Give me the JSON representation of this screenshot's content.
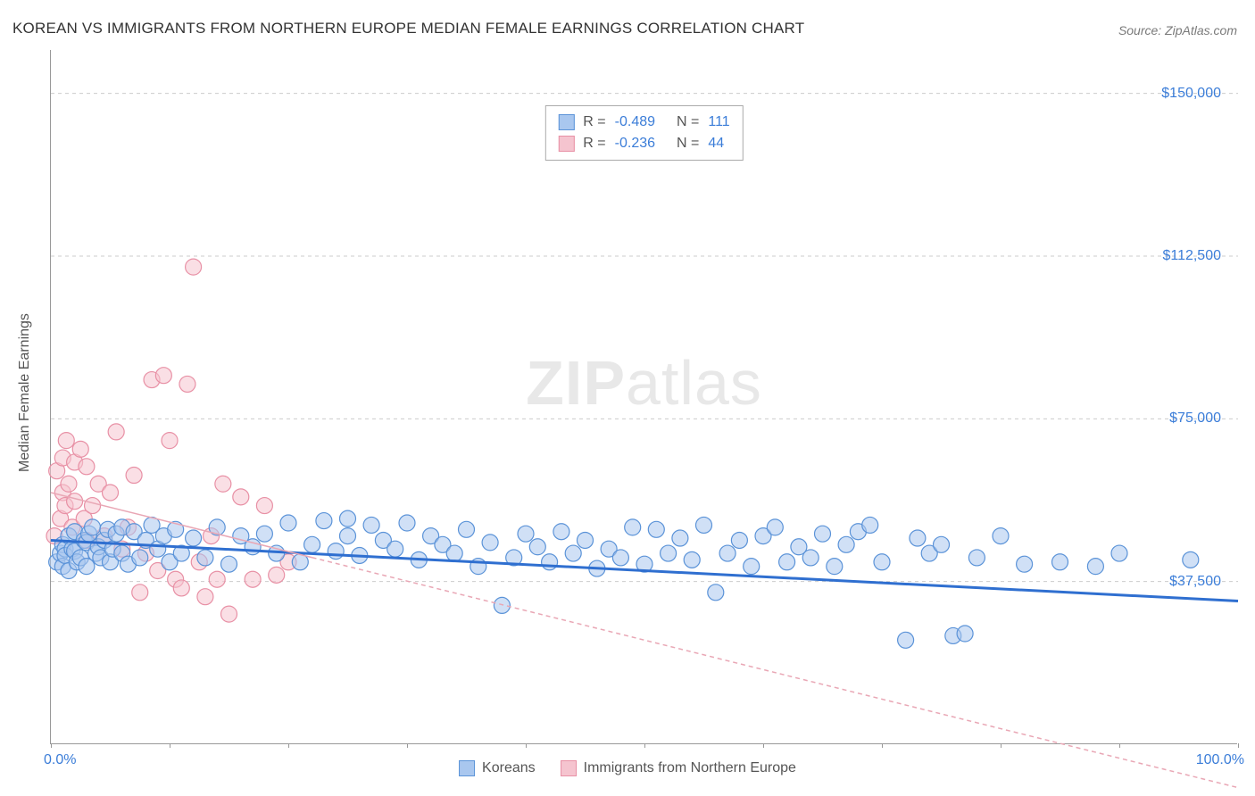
{
  "title": "KOREAN VS IMMIGRANTS FROM NORTHERN EUROPE MEDIAN FEMALE EARNINGS CORRELATION CHART",
  "source": "Source: ZipAtlas.com",
  "watermark_zip": "ZIP",
  "watermark_atlas": "atlas",
  "y_axis_title": "Median Female Earnings",
  "chart": {
    "type": "scatter-correlation",
    "background_color": "#ffffff",
    "grid_color": "#cccccc",
    "axis_color": "#999999",
    "xlim": [
      0,
      100
    ],
    "ylim": [
      0,
      160000
    ],
    "x_ticks": [
      0,
      10,
      20,
      30,
      40,
      50,
      60,
      70,
      80,
      90,
      100
    ],
    "x_tick_labels": {
      "0": "0.0%",
      "100": "100.0%"
    },
    "y_ticks": [
      37500,
      75000,
      112500,
      150000
    ],
    "y_tick_labels": [
      "$37,500",
      "$75,000",
      "$112,500",
      "$150,000"
    ],
    "label_color": "#3b7dd8",
    "title_fontsize": 17,
    "label_fontsize": 16,
    "marker_radius": 9,
    "marker_opacity": 0.55,
    "series": [
      {
        "name": "Koreans",
        "color_fill": "#a9c7ef",
        "color_stroke": "#5b93d8",
        "correlation_R": "-0.489",
        "correlation_N": "111",
        "trend": {
          "y_at_x0": 47000,
          "y_at_x100": 33000,
          "stroke": "#2f6fd0",
          "width": 3,
          "dash": "none"
        },
        "points": [
          [
            0.5,
            42000
          ],
          [
            0.8,
            44000
          ],
          [
            1,
            46000
          ],
          [
            1,
            41000
          ],
          [
            1.2,
            45000
          ],
          [
            1.2,
            43500
          ],
          [
            1.5,
            48000
          ],
          [
            1.5,
            40000
          ],
          [
            1.8,
            45000
          ],
          [
            2,
            44500
          ],
          [
            2,
            49000
          ],
          [
            2.2,
            42000
          ],
          [
            2.5,
            43000
          ],
          [
            2.8,
            47000
          ],
          [
            3,
            46500
          ],
          [
            3,
            41000
          ],
          [
            3.2,
            48500
          ],
          [
            3.5,
            50000
          ],
          [
            3.8,
            44000
          ],
          [
            4,
            45500
          ],
          [
            4.2,
            43000
          ],
          [
            4.5,
            47000
          ],
          [
            4.8,
            49500
          ],
          [
            5,
            42000
          ],
          [
            5.2,
            45000
          ],
          [
            5.5,
            48500
          ],
          [
            6,
            44000
          ],
          [
            6,
            50000
          ],
          [
            6.5,
            41500
          ],
          [
            7,
            49000
          ],
          [
            7.5,
            43000
          ],
          [
            8,
            47000
          ],
          [
            8.5,
            50500
          ],
          [
            9,
            45000
          ],
          [
            9.5,
            48000
          ],
          [
            10,
            42000
          ],
          [
            10.5,
            49500
          ],
          [
            11,
            44000
          ],
          [
            12,
            47500
          ],
          [
            13,
            43000
          ],
          [
            14,
            50000
          ],
          [
            15,
            41500
          ],
          [
            16,
            48000
          ],
          [
            17,
            45500
          ],
          [
            18,
            48500
          ],
          [
            19,
            44000
          ],
          [
            20,
            51000
          ],
          [
            21,
            42000
          ],
          [
            22,
            46000
          ],
          [
            23,
            51500
          ],
          [
            24,
            44500
          ],
          [
            25,
            48000
          ],
          [
            25,
            52000
          ],
          [
            26,
            43500
          ],
          [
            27,
            50500
          ],
          [
            28,
            47000
          ],
          [
            29,
            45000
          ],
          [
            30,
            51000
          ],
          [
            31,
            42500
          ],
          [
            32,
            48000
          ],
          [
            33,
            46000
          ],
          [
            34,
            44000
          ],
          [
            35,
            49500
          ],
          [
            36,
            41000
          ],
          [
            37,
            46500
          ],
          [
            38,
            32000
          ],
          [
            39,
            43000
          ],
          [
            40,
            48500
          ],
          [
            41,
            45500
          ],
          [
            42,
            42000
          ],
          [
            43,
            49000
          ],
          [
            44,
            44000
          ],
          [
            45,
            47000
          ],
          [
            46,
            40500
          ],
          [
            47,
            45000
          ],
          [
            48,
            43000
          ],
          [
            49,
            50000
          ],
          [
            50,
            41500
          ],
          [
            51,
            49500
          ],
          [
            52,
            44000
          ],
          [
            53,
            47500
          ],
          [
            54,
            42500
          ],
          [
            55,
            50500
          ],
          [
            56,
            35000
          ],
          [
            57,
            44000
          ],
          [
            58,
            47000
          ],
          [
            59,
            41000
          ],
          [
            60,
            48000
          ],
          [
            61,
            50000
          ],
          [
            62,
            42000
          ],
          [
            63,
            45500
          ],
          [
            64,
            43000
          ],
          [
            65,
            48500
          ],
          [
            66,
            41000
          ],
          [
            67,
            46000
          ],
          [
            68,
            49000
          ],
          [
            69,
            50500
          ],
          [
            70,
            42000
          ],
          [
            72,
            24000
          ],
          [
            73,
            47500
          ],
          [
            74,
            44000
          ],
          [
            75,
            46000
          ],
          [
            76,
            25000
          ],
          [
            77,
            25500
          ],
          [
            78,
            43000
          ],
          [
            80,
            48000
          ],
          [
            82,
            41500
          ],
          [
            85,
            42000
          ],
          [
            88,
            41000
          ],
          [
            90,
            44000
          ],
          [
            96,
            42500
          ]
        ]
      },
      {
        "name": "Immigrants from Northern Europe",
        "color_fill": "#f5c4cf",
        "color_stroke": "#e890a5",
        "correlation_R": "-0.236",
        "correlation_N": "44",
        "trend": {
          "y_at_x0": 58000,
          "y_at_x100": -10000,
          "stroke": "#e9a7b5",
          "width": 1.5,
          "dash": "5,4",
          "solid_until_x": 22
        },
        "points": [
          [
            0.3,
            48000
          ],
          [
            0.5,
            63000
          ],
          [
            0.8,
            52000
          ],
          [
            1,
            66000
          ],
          [
            1,
            58000
          ],
          [
            1.2,
            55000
          ],
          [
            1.3,
            70000
          ],
          [
            1.5,
            60000
          ],
          [
            1.8,
            50000
          ],
          [
            2,
            65000
          ],
          [
            2,
            56000
          ],
          [
            2.5,
            68000
          ],
          [
            2.8,
            52000
          ],
          [
            3,
            47000
          ],
          [
            3,
            64000
          ],
          [
            3.5,
            55000
          ],
          [
            4,
            60000
          ],
          [
            4.5,
            48000
          ],
          [
            5,
            58000
          ],
          [
            5.5,
            72000
          ],
          [
            6,
            45000
          ],
          [
            6.5,
            50000
          ],
          [
            7,
            62000
          ],
          [
            7.5,
            35000
          ],
          [
            8,
            44000
          ],
          [
            8.5,
            84000
          ],
          [
            9,
            40000
          ],
          [
            9.5,
            85000
          ],
          [
            10,
            70000
          ],
          [
            10.5,
            38000
          ],
          [
            11,
            36000
          ],
          [
            11.5,
            83000
          ],
          [
            12,
            110000
          ],
          [
            12.5,
            42000
          ],
          [
            13,
            34000
          ],
          [
            13.5,
            48000
          ],
          [
            14,
            38000
          ],
          [
            14.5,
            60000
          ],
          [
            15,
            30000
          ],
          [
            16,
            57000
          ],
          [
            17,
            38000
          ],
          [
            18,
            55000
          ],
          [
            19,
            39000
          ],
          [
            20,
            42000
          ]
        ]
      }
    ]
  },
  "legend_top": {
    "R_label": "R =",
    "N_label": "N ="
  },
  "legend_bottom": [
    {
      "label": "Koreans",
      "fill": "#a9c7ef",
      "stroke": "#5b93d8"
    },
    {
      "label": "Immigrants from Northern Europe",
      "fill": "#f5c4cf",
      "stroke": "#e890a5"
    }
  ]
}
